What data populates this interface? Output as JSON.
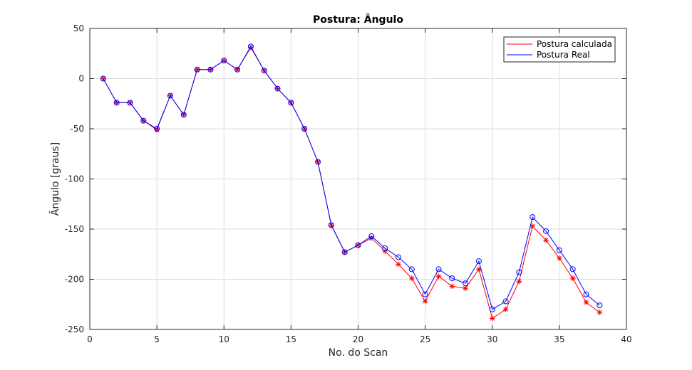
{
  "chart_data": {
    "type": "line",
    "title": "Postura: Ângulo",
    "xlabel": "No. do Scan",
    "ylabel": "Ângulo [graus]",
    "xlim": [
      0,
      40
    ],
    "ylim": [
      -250,
      50
    ],
    "xticks": [
      0,
      5,
      10,
      15,
      20,
      25,
      30,
      35,
      40
    ],
    "yticks": [
      50,
      0,
      -50,
      -100,
      -150,
      -200,
      -250
    ],
    "grid": true,
    "legend_position": "top-right",
    "x": [
      1,
      2,
      3,
      4,
      5,
      6,
      7,
      8,
      9,
      10,
      11,
      12,
      13,
      14,
      15,
      16,
      17,
      18,
      19,
      20,
      21,
      22,
      23,
      24,
      25,
      26,
      27,
      28,
      29,
      30,
      31,
      32,
      33,
      34,
      35,
      36,
      37,
      38
    ],
    "series": [
      {
        "name": "Postura calculada",
        "color": "#ff0000",
        "marker": "asterisk",
        "values": [
          0,
          -24,
          -24,
          -42,
          -51,
          -17,
          -36,
          9,
          9,
          18,
          9,
          31,
          8,
          -10,
          -24,
          -50,
          -83,
          -146,
          -173,
          -166,
          -159,
          -172,
          -185,
          -199,
          -222,
          -197,
          -207,
          -209,
          -190,
          -239,
          -230,
          -202,
          -147,
          -161,
          -179,
          -199,
          -223,
          -233
        ]
      },
      {
        "name": "Postura Real",
        "color": "#0000ff",
        "marker": "circle",
        "values": [
          0,
          -24,
          -24,
          -42,
          -50,
          -17,
          -36,
          9,
          9,
          18,
          9,
          32,
          8,
          -10,
          -24,
          -50,
          -83,
          -146,
          -173,
          -166,
          -157,
          -169,
          -178,
          -190,
          -215,
          -190,
          -199,
          -204,
          -182,
          -230,
          -222,
          -193,
          -138,
          -152,
          -171,
          -190,
          -215,
          -226
        ]
      }
    ]
  }
}
